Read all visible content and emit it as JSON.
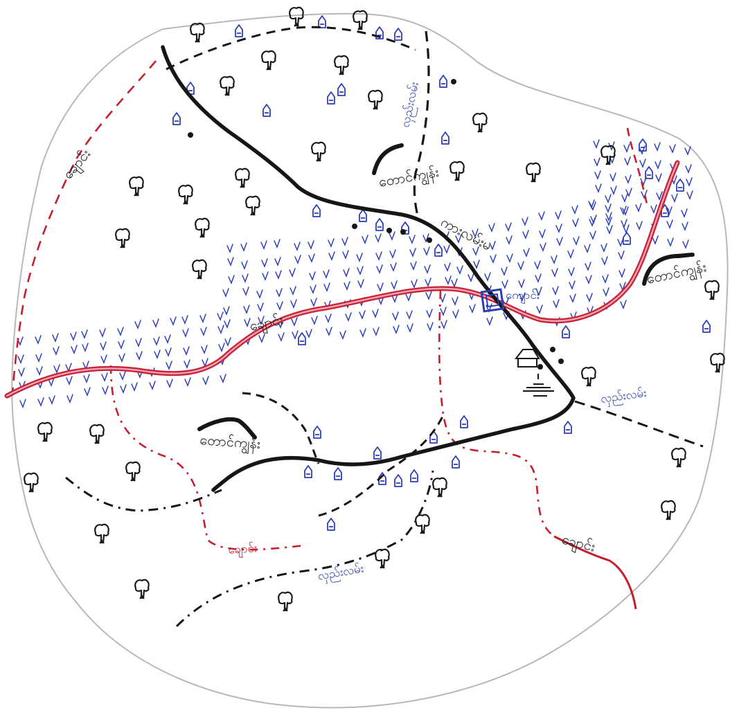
{
  "map": {
    "colors": {
      "paper": "#ffffff",
      "boundary": "#b8b8b8",
      "road": "#161616",
      "river": "#e0566a",
      "river_outline": "#c6223a",
      "stream": "#c61e2e",
      "paddy": "#2c3fb8",
      "house": "#2c3fb8",
      "tree": "#1a1a1a",
      "label_black": "#1a1a1a",
      "label_blue": "#2a3fae"
    },
    "labels": {
      "river_main": "ချောင်း",
      "village_north": "တောင်ကျွန်း",
      "village_east": "တောင်ကျွန်း",
      "village_southwest": "တောင်ကျွန်း",
      "road_center": "ကားလမ်းမ",
      "monastery": "ကျောင်း",
      "stream_northwest": "ချောင်း",
      "stream_southwest": "ချောင်း",
      "stream_southeast": "ချောင်း",
      "path_north": "လှည်းလမ်း",
      "path_east": "လှည်းလမ်း",
      "path_south": "လှည်းလမ်း"
    },
    "icons": {
      "tree": "tree-icon",
      "house": "house-icon",
      "well": "well-icon",
      "paddy": "paddy-icon",
      "monastery": "monastery-icon",
      "pagoda": "pagoda-icon"
    }
  }
}
